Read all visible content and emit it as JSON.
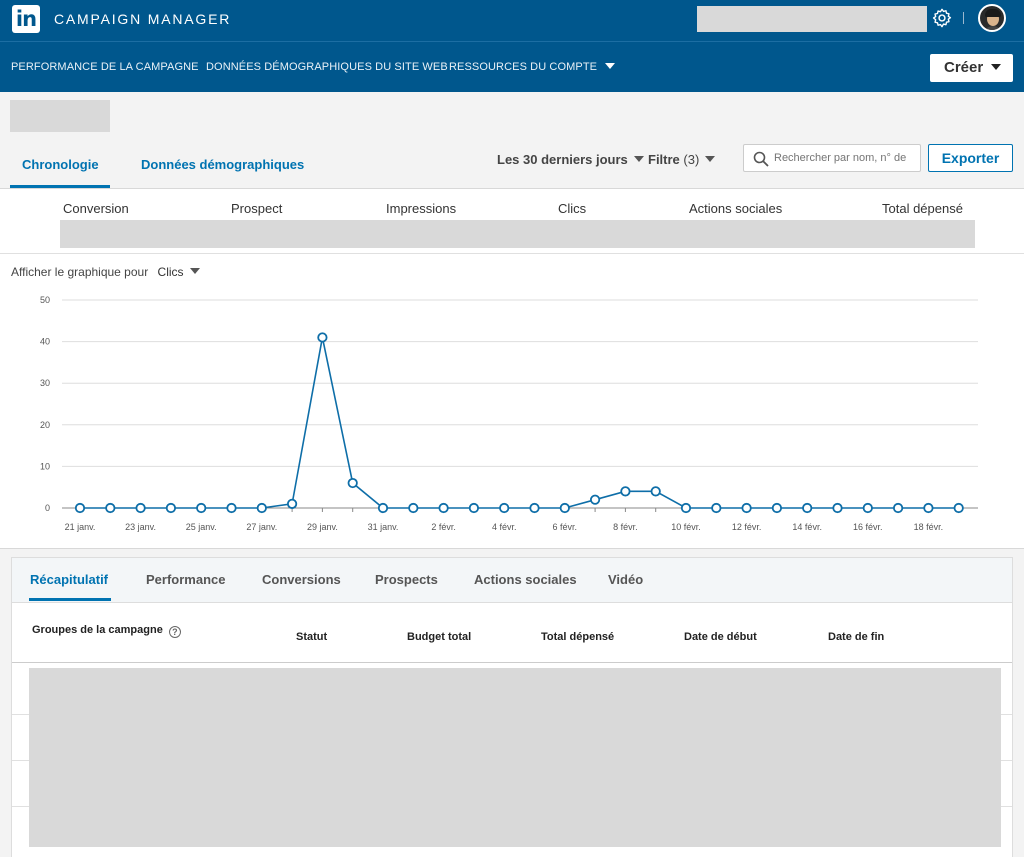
{
  "app": {
    "brand": "CAMPAIGN MANAGER",
    "logo_text": "in"
  },
  "nav": {
    "items": [
      {
        "label": "PERFORMANCE DE LA CAMPAGNE"
      },
      {
        "label": "DONNÉES DÉMOGRAPHIQUES DU SITE WEB"
      },
      {
        "label": "RESSOURCES DU COMPTE"
      }
    ],
    "create_button": "Créer"
  },
  "view_tabs": [
    {
      "label": "Chronologie",
      "active": true
    },
    {
      "label": "Données démographiques",
      "active": false
    }
  ],
  "toolbar": {
    "date_range": "Les 30 derniers jours",
    "filter_label": "Filtre",
    "filter_count": "(3)",
    "search_placeholder": "Rechercher par nom, n° de",
    "export_button": "Exporter"
  },
  "metrics": [
    "Conversion",
    "Prospect",
    "Impressions",
    "Clics",
    "Actions sociales",
    "Total dépensé"
  ],
  "chart_selector": {
    "label": "Afficher le graphique pour",
    "value": "Clics"
  },
  "chart_data": {
    "type": "line",
    "title": "",
    "xlabel": "",
    "ylabel": "",
    "ylim": [
      0,
      50
    ],
    "yticks": [
      "0",
      "10",
      "20",
      "30",
      "40",
      "50"
    ],
    "x": [
      "21 janv.",
      "22 janv.",
      "23 janv.",
      "24 janv.",
      "25 janv.",
      "26 janv.",
      "27 janv.",
      "28 janv.",
      "29 janv.",
      "30 janv.",
      "31 janv.",
      "1 févr.",
      "2 févr.",
      "3 févr.",
      "4 févr.",
      "5 févr.",
      "6 févr.",
      "7 févr.",
      "8 févr.",
      "9 févr.",
      "10 févr.",
      "11 févr.",
      "12 févr.",
      "13 févr.",
      "14 févr.",
      "15 févr.",
      "16 févr.",
      "17 févr.",
      "18 févr.",
      "19 févr."
    ],
    "xtick_labels": [
      "21 janv.",
      "23 janv.",
      "25 janv.",
      "27 janv.",
      "29 janv.",
      "31 janv.",
      "2 févr.",
      "4 févr.",
      "6 févr.",
      "8 févr.",
      "10 févr.",
      "12 févr.",
      "14 févr.",
      "16 févr.",
      "18 févr."
    ],
    "series": [
      {
        "values": [
          0,
          0,
          0,
          0,
          0,
          0,
          0,
          1,
          41,
          6,
          0,
          0,
          0,
          0,
          0,
          0,
          0,
          2,
          4,
          4,
          0,
          0,
          0,
          0,
          0,
          0,
          0,
          0,
          0,
          0
        ]
      }
    ],
    "color": "#0e6ea8",
    "grid": true
  },
  "bottom_tabs": [
    {
      "label": "Récapitulatif",
      "active": true
    },
    {
      "label": "Performance",
      "active": false
    },
    {
      "label": "Conversions",
      "active": false
    },
    {
      "label": "Prospects",
      "active": false
    },
    {
      "label": "Actions sociales",
      "active": false
    },
    {
      "label": "Vidéo",
      "active": false
    }
  ],
  "table": {
    "columns": [
      "Groupes de la campagne",
      "Statut",
      "Budget total",
      "Total dépensé",
      "Date de début",
      "Date de fin"
    ],
    "help_glyph": "?"
  },
  "colors": {
    "header_bg": "#00578d",
    "accent": "#0073b1",
    "redacted": "#d9d9d9"
  }
}
